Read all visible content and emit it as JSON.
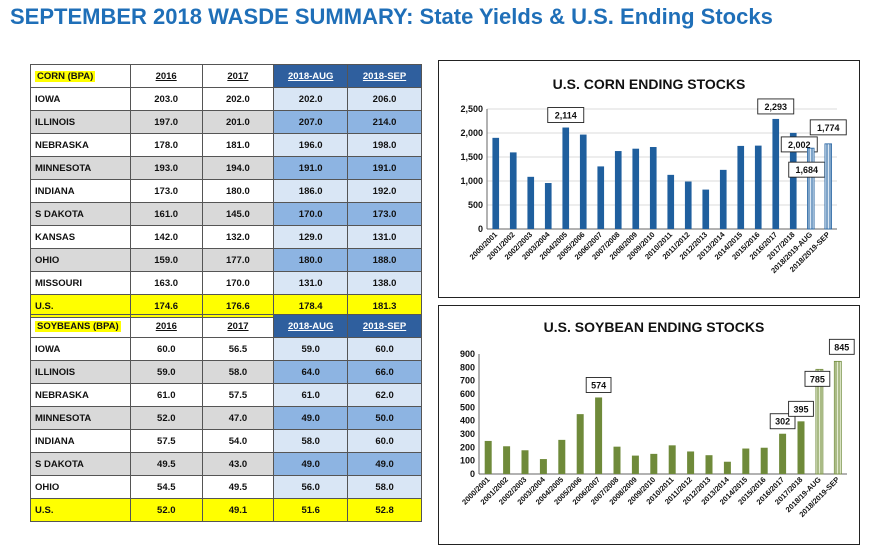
{
  "page_title": "SEPTEMBER 2018 WASDE SUMMARY: State Yields & U.S. Ending Stocks",
  "corn_table": {
    "header": [
      "CORN (BPA)",
      "2016",
      "2017",
      "2018-AUG",
      "2018-SEP"
    ],
    "rows": [
      [
        "IOWA",
        "203.0",
        "202.0",
        "202.0",
        "206.0"
      ],
      [
        "ILLINOIS",
        "197.0",
        "201.0",
        "207.0",
        "214.0"
      ],
      [
        "NEBRASKA",
        "178.0",
        "181.0",
        "196.0",
        "198.0"
      ],
      [
        "MINNESOTA",
        "193.0",
        "194.0",
        "191.0",
        "191.0"
      ],
      [
        "INDIANA",
        "173.0",
        "180.0",
        "186.0",
        "192.0"
      ],
      [
        "S DAKOTA",
        "161.0",
        "145.0",
        "170.0",
        "173.0"
      ],
      [
        "KANSAS",
        "142.0",
        "132.0",
        "129.0",
        "131.0"
      ],
      [
        "OHIO",
        "159.0",
        "177.0",
        "180.0",
        "188.0"
      ],
      [
        "MISSOURI",
        "163.0",
        "170.0",
        "131.0",
        "138.0"
      ]
    ],
    "total": [
      "U.S.",
      "174.6",
      "176.6",
      "178.4",
      "181.3"
    ]
  },
  "soy_table": {
    "header": [
      "SOYBEANS (BPA)",
      "2016",
      "2017",
      "2018-AUG",
      "2018-SEP"
    ],
    "rows": [
      [
        "IOWA",
        "60.0",
        "56.5",
        "59.0",
        "60.0"
      ],
      [
        "ILLINOIS",
        "59.0",
        "58.0",
        "64.0",
        "66.0"
      ],
      [
        "NEBRASKA",
        "61.0",
        "57.5",
        "61.0",
        "62.0"
      ],
      [
        "MINNESOTA",
        "52.0",
        "47.0",
        "49.0",
        "50.0"
      ],
      [
        "INDIANA",
        "57.5",
        "54.0",
        "58.0",
        "60.0"
      ],
      [
        "S DAKOTA",
        "49.5",
        "43.0",
        "49.0",
        "49.0"
      ],
      [
        "OHIO",
        "54.5",
        "49.5",
        "56.0",
        "58.0"
      ]
    ],
    "total": [
      "U.S.",
      "52.0",
      "49.1",
      "51.6",
      "52.8"
    ]
  },
  "chart_data": [
    {
      "type": "bar",
      "title": "U.S. CORN ENDING STOCKS",
      "categories": [
        "2000/2001",
        "2001/2002",
        "2002/2003",
        "2003/2004",
        "2004/2005",
        "2005/2006",
        "2006/2007",
        "2007/2008",
        "2008/2009",
        "2009/2010",
        "2010/2011",
        "2011/2012",
        "2012/2013",
        "2013/2014",
        "2014/2015",
        "2015/2016",
        "2016/2017",
        "2017/2018",
        "2018/2019-AUG",
        "2018/2019-SEP"
      ],
      "values": [
        1899,
        1596,
        1087,
        958,
        2114,
        1967,
        1304,
        1624,
        1673,
        1708,
        1128,
        989,
        821,
        1232,
        1731,
        1737,
        2293,
        2002,
        1684,
        1774
      ],
      "labeled_values": [
        "",
        "",
        "",
        "",
        "2,114",
        "",
        "",
        "",
        "",
        "",
        "",
        "",
        "",
        "",
        "",
        "",
        "2,293",
        "2,002",
        "1,684",
        "1,774"
      ],
      "ylim": [
        0,
        2500
      ],
      "yticks": [
        "0",
        "500",
        "1,000",
        "1,500",
        "2,000",
        "2,500"
      ],
      "ytick_values": [
        0,
        500,
        1000,
        1500,
        2000,
        2500
      ],
      "grid": true,
      "colors": {
        "bar": "#1f5f9e",
        "projection_fill": "#dce8f4"
      }
    },
    {
      "type": "bar",
      "title": "U.S. SOYBEAN ENDING STOCKS",
      "categories": [
        "2000/2001",
        "2001/2002",
        "2002/2003",
        "2003/2004",
        "2004/2005",
        "2005/2006",
        "2006/2007",
        "2007/2008",
        "2008/2009",
        "2009/2010",
        "2010/2011",
        "2011/2012",
        "2012/2013",
        "2013/2014",
        "2014/2015",
        "2015/2016",
        "2016/2017",
        "2017/2018",
        "2018/19-AUG",
        "2018/2019-SEP"
      ],
      "values": [
        248,
        208,
        178,
        112,
        256,
        449,
        574,
        205,
        138,
        151,
        215,
        169,
        141,
        92,
        191,
        197,
        302,
        395,
        785,
        845
      ],
      "labeled_values": [
        "",
        "",
        "",
        "",
        "",
        "",
        "574",
        "",
        "",
        "",
        "",
        "",
        "",
        "",
        "",
        "",
        "302",
        "395",
        "785",
        "845"
      ],
      "ylim": [
        0,
        900
      ],
      "yticks": [
        "0",
        "100",
        "200",
        "300",
        "400",
        "500",
        "600",
        "700",
        "800",
        "900"
      ],
      "ytick_values": [
        0,
        100,
        200,
        300,
        400,
        500,
        600,
        700,
        800,
        900
      ],
      "grid": false,
      "colors": {
        "bar": "#6f8a3a",
        "projection_fill": "#e4ecd2"
      }
    }
  ]
}
